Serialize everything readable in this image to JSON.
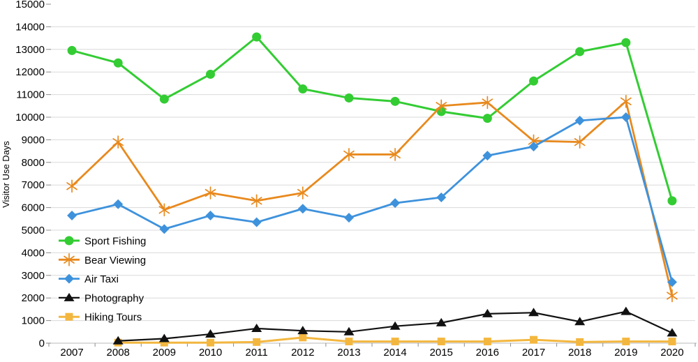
{
  "chart_data": {
    "type": "line",
    "title": "",
    "xlabel": "",
    "ylabel": "Visitor Use Days",
    "ylim": [
      0,
      15000
    ],
    "ytick_step": 1000,
    "grid": "horizontal",
    "legend_position": "inside-left",
    "categories": [
      "2007",
      "2008",
      "2009",
      "2010",
      "2011",
      "2012",
      "2013",
      "2014",
      "2015",
      "2016",
      "2017",
      "2018",
      "2019",
      "2020"
    ],
    "series": [
      {
        "name": "Sport Fishing",
        "color": "#33CC33",
        "marker": "circle",
        "values": [
          12950,
          12400,
          10800,
          11900,
          13550,
          11250,
          10850,
          10700,
          10250,
          9950,
          11600,
          12900,
          13300,
          6300
        ]
      },
      {
        "name": "Bear Viewing",
        "color": "#E8891D",
        "marker": "asterisk",
        "values": [
          6950,
          8900,
          5900,
          6650,
          6300,
          6650,
          8350,
          8350,
          10500,
          10650,
          8950,
          8900,
          10700,
          2100
        ]
      },
      {
        "name": "Air Taxi",
        "color": "#3E92DC",
        "marker": "diamond",
        "values": [
          5650,
          6150,
          5050,
          5650,
          5350,
          5950,
          5550,
          6200,
          6450,
          8300,
          8700,
          9850,
          10000,
          2700
        ]
      },
      {
        "name": "Photography",
        "color": "#111111",
        "marker": "triangle-up",
        "values": [
          null,
          100,
          200,
          400,
          650,
          550,
          500,
          750,
          900,
          1300,
          1350,
          950,
          1400,
          450
        ]
      },
      {
        "name": "Hiking Tours",
        "color": "#F3B73F",
        "marker": "square",
        "values": [
          null,
          25,
          25,
          25,
          50,
          250,
          75,
          75,
          75,
          75,
          150,
          50,
          75,
          75
        ]
      }
    ],
    "style": {
      "grid_color": "#D9D9D9",
      "axis_color": "#C6C6C6",
      "tick_color": "#8C8C8C",
      "text_color": "#000000",
      "background": "#FFFFFF"
    }
  }
}
